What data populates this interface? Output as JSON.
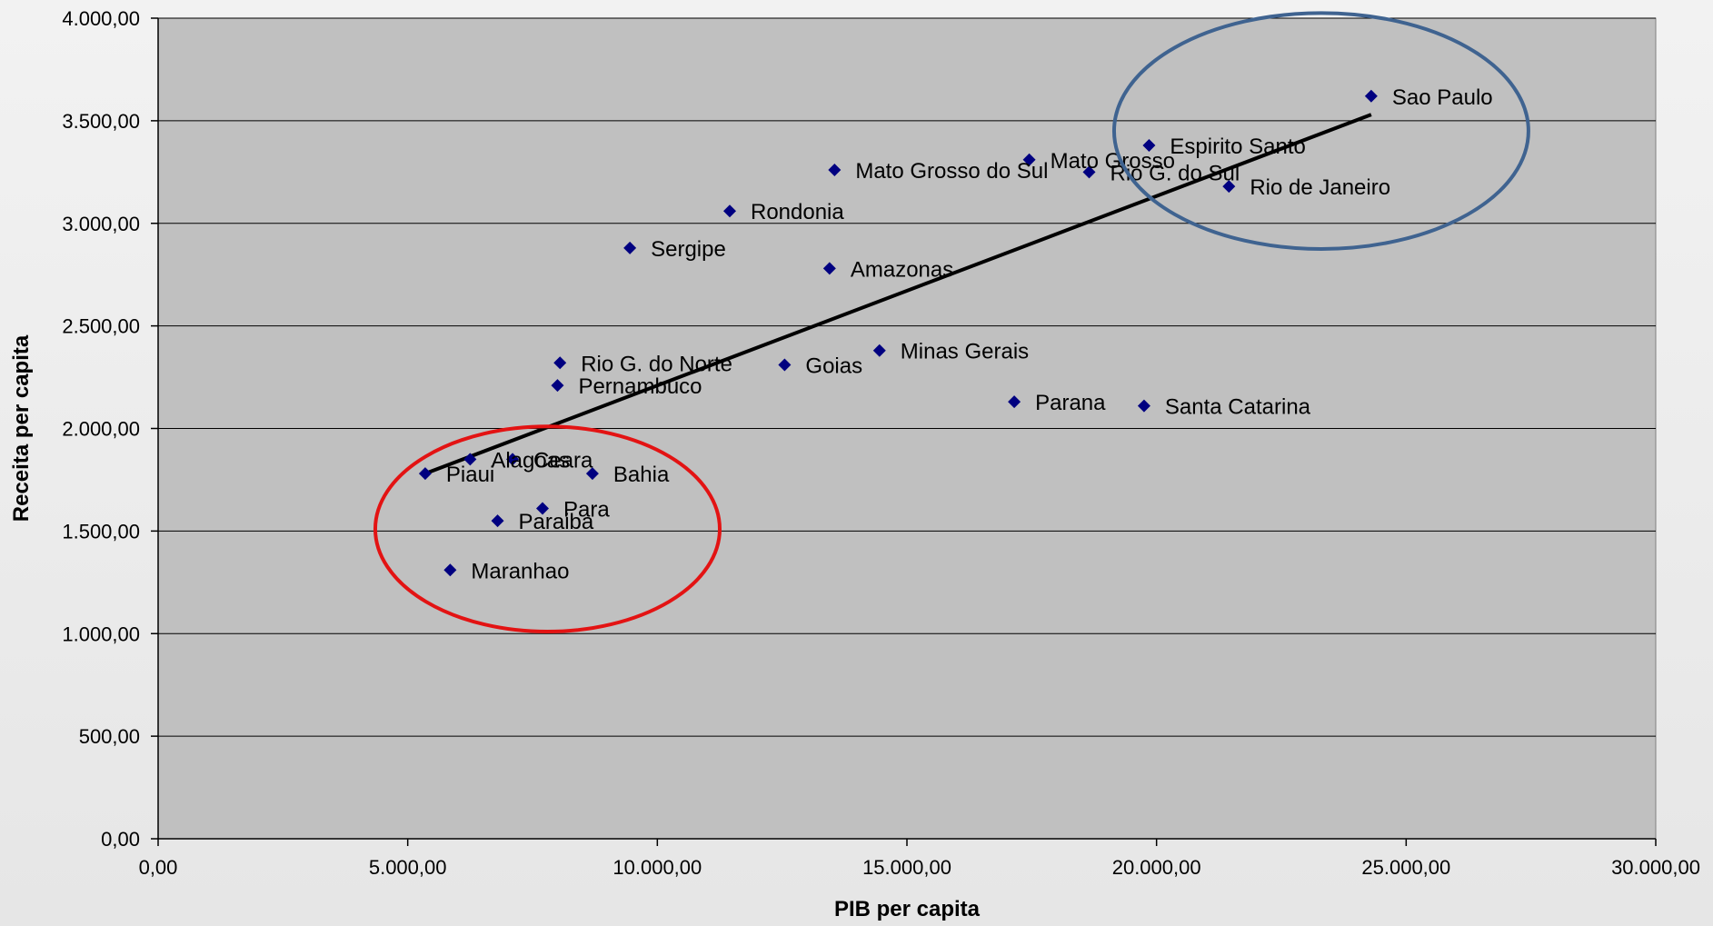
{
  "chart_data": {
    "type": "scatter",
    "title": "",
    "xlabel": "PIB per capita",
    "ylabel": "Receita per capita",
    "xlim": [
      0,
      30000
    ],
    "ylim": [
      0,
      4000
    ],
    "x_ticks": [
      {
        "value": 0,
        "label": "0,00"
      },
      {
        "value": 5000,
        "label": "5.000,00"
      },
      {
        "value": 10000,
        "label": "10.000,00"
      },
      {
        "value": 15000,
        "label": "15.000,00"
      },
      {
        "value": 20000,
        "label": "20.000,00"
      },
      {
        "value": 25000,
        "label": "25.000,00"
      },
      {
        "value": 30000,
        "label": "30.000,00"
      }
    ],
    "y_ticks": [
      {
        "value": 0,
        "label": "0,00"
      },
      {
        "value": 500,
        "label": "500,00"
      },
      {
        "value": 1000,
        "label": "1.000,00"
      },
      {
        "value": 1500,
        "label": "1.500,00"
      },
      {
        "value": 2000,
        "label": "2.000,00"
      },
      {
        "value": 2500,
        "label": "2.500,00"
      },
      {
        "value": 3000,
        "label": "3.000,00"
      },
      {
        "value": 3500,
        "label": "3.500,00"
      },
      {
        "value": 4000,
        "label": "4.000,00"
      }
    ],
    "grid": "horizontal",
    "legend": "none",
    "marker_color": "#000080",
    "points": [
      {
        "label": "Sao Paulo",
        "x": 24300,
        "y": 3620
      },
      {
        "label": "Espirito Santo",
        "x": 19850,
        "y": 3380
      },
      {
        "label": "Mato Grosso",
        "x": 17450,
        "y": 3310
      },
      {
        "label": "Rio G. do Sul",
        "x": 18650,
        "y": 3250
      },
      {
        "label": "Rio de Janeiro",
        "x": 21450,
        "y": 3180
      },
      {
        "label": "Mato Grosso do Sul",
        "x": 13550,
        "y": 3260
      },
      {
        "label": "Rondonia",
        "x": 11450,
        "y": 3060
      },
      {
        "label": "Sergipe",
        "x": 9450,
        "y": 2880
      },
      {
        "label": "Amazonas",
        "x": 13450,
        "y": 2780
      },
      {
        "label": "Minas Gerais",
        "x": 14450,
        "y": 2380
      },
      {
        "label": "Rio G. do Norte",
        "x": 8050,
        "y": 2320
      },
      {
        "label": "Goias",
        "x": 12550,
        "y": 2310
      },
      {
        "label": "Pernambuco",
        "x": 8000,
        "y": 2210
      },
      {
        "label": "Parana",
        "x": 17150,
        "y": 2130
      },
      {
        "label": "Santa Catarina",
        "x": 19750,
        "y": 2110
      },
      {
        "label": "Alagoas",
        "x": 6250,
        "y": 1850
      },
      {
        "label": "Ceara",
        "x": 7100,
        "y": 1850
      },
      {
        "label": "Piaui",
        "x": 5350,
        "y": 1780
      },
      {
        "label": "Bahia",
        "x": 8700,
        "y": 1780
      },
      {
        "label": "Para",
        "x": 7700,
        "y": 1610
      },
      {
        "label": "Paraiba",
        "x": 6800,
        "y": 1550
      },
      {
        "label": "Maranhao",
        "x": 5850,
        "y": 1310
      }
    ],
    "trendline": {
      "x1": 5350,
      "y1": 1780,
      "x2": 24300,
      "y2": 3530,
      "color": "#000000"
    },
    "annotations": [
      {
        "shape": "ellipse",
        "cx": 23300,
        "cy": 3450,
        "rx": 4150,
        "ry": 575,
        "color": "#3f6390"
      },
      {
        "shape": "ellipse",
        "cx": 7800,
        "cy": 1510,
        "rx": 3450,
        "ry": 500,
        "color": "#e31313"
      }
    ]
  }
}
